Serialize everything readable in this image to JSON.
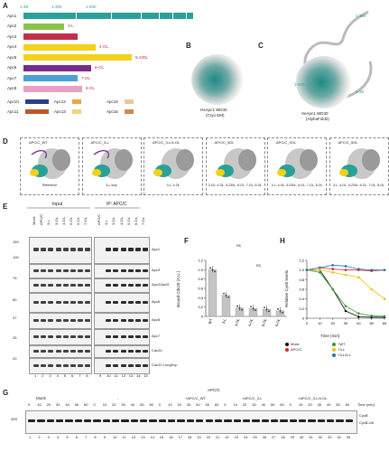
{
  "panels": {
    "A": "A",
    "B": "B",
    "C": "C",
    "D": "D",
    "E": "E",
    "F": "F",
    "G": "G",
    "H": "H"
  },
  "panelA": {
    "callouts": [
      "1-38",
      "1-300",
      "1-500"
    ],
    "rows": [
      {
        "name": "Apc1",
        "color": "#2aa198"
      },
      {
        "name": "Apc2",
        "color": "#8bc34a",
        "suffix": "3-L"
      },
      {
        "name": "Apc3",
        "color": "#c0304a"
      },
      {
        "name": "Apc4",
        "color": "#f2d21b",
        "suffix": "4-OL"
      },
      {
        "name": "Apc5",
        "color": "#f2d21b",
        "suffix": "5-230L"
      },
      {
        "name": "Apc6",
        "color": "#7b2a8c",
        "suffix": "8-OL"
      },
      {
        "name": "Apc7",
        "color": "#4aa0d8",
        "suffix": "7-OL"
      },
      {
        "name": "Apc8",
        "color": "#e8a0c8",
        "suffix": "8-OL"
      }
    ],
    "small_rows": [
      {
        "name": "Apc10",
        "color": "#2b3d8c"
      },
      {
        "name": "Apc11",
        "color": "#c0552a"
      },
      {
        "name": "Apc12",
        "color": "#e8a848"
      },
      {
        "name": "Apc13",
        "color": "#f2d27a"
      },
      {
        "name": "Apc15",
        "color": "#e8c8a0"
      },
      {
        "name": "Apc16",
        "color": "#d08a50"
      }
    ]
  },
  "panelB": {
    "line1": "HsApc1 WD40",
    "line2": "(Cryo EM)"
  },
  "panelC": {
    "line1": "XeApc1 WD40",
    "line2": "(AlphaFold2)",
    "callouts": [
      "1-300",
      "1-500",
      "1-38"
    ]
  },
  "panelD": {
    "complexes": [
      {
        "title": "APC/C_WT",
        "caption": "Reference"
      },
      {
        "title": "APC/C_3-L",
        "caption": "3-L only"
      },
      {
        "title": "APC/C_3-L/4-OL",
        "caption": "3-L, 4-OL"
      },
      {
        "title": "APC/C_3OL",
        "caption": "3-OL, 4-OL, 5-230L, 6-OL, 7-OL, 8-OL"
      },
      {
        "title": "APC/C_4OL",
        "caption": "3-L, 4-OL, 5-230L, 6-OL, 7-OL, 8-OL"
      },
      {
        "title": "APC/C_5OL",
        "caption": "3-L, 4-OL, 5-230L, 6-OL, 7-OL, 8-OL"
      }
    ]
  },
  "panelE": {
    "group_input": "Input",
    "group_ip": "IP: APC/C",
    "lanes": [
      "Mock",
      "APC/C",
      "3-L",
      "3-OL",
      "4-OL",
      "5-OL",
      "6-OL",
      "7-OL"
    ],
    "mw": [
      "150",
      "100",
      "75",
      "50",
      "37",
      "25",
      "20"
    ],
    "bands": [
      "Apc1",
      "Apc3",
      "Apc2/Apc5",
      "Apc6",
      "Apc8",
      "Apc7",
      "Cdc20",
      "Cdc20 LongExp"
    ],
    "lane_numbers": [
      "1",
      "2",
      "3",
      "4",
      "5",
      "6",
      "7",
      "8",
      "9",
      "10",
      "11",
      "12",
      "13",
      "14",
      "15"
    ]
  },
  "panelF": {
    "ylabel": "Bound Cdc20 (A.U.)",
    "sig1": "ns",
    "sig2": "ns"
  },
  "panelH": {
    "ylabel": "Relative CycB levels",
    "xlabel": "Time (min)",
    "legend": [
      {
        "label": "Mock",
        "color": "#111111"
      },
      {
        "label": "APC/C",
        "color": "#d62728"
      },
      {
        "label": "+WT",
        "color": "#2ca02c"
      },
      {
        "label": "+3-L",
        "color": "#f2c000"
      },
      {
        "label": "+3-L/5-L",
        "color": "#1f77b4"
      }
    ]
  },
  "panelG": {
    "group_mock": "Mock",
    "group_apc": "APC/C",
    "subgroups": [
      "-",
      "+APC/C_WT",
      "+APC/C_3-L",
      "+APC/C_3-L/4-OL"
    ],
    "times": [
      "0",
      "10",
      "20",
      "30",
      "40",
      "50",
      "60"
    ],
    "time_unit": "Time (min)",
    "left_label": "35S",
    "right_labels": [
      "CycB",
      "CycB-Ub"
    ]
  },
  "chart_data": [
    {
      "type": "bar",
      "categories": [
        "WT",
        "3-L",
        "3-OL",
        "4-OL",
        "5-OL",
        "6-OL"
      ],
      "values": [
        1.0,
        0.45,
        0.18,
        0.17,
        0.15,
        0.12
      ],
      "ylim": [
        0,
        1.2
      ],
      "ylabel": "Bound Cdc20 (A.U.)",
      "yticks": [
        "0",
        "0.2",
        "0.4",
        "0.6",
        "0.8",
        "1.0",
        "1.2"
      ]
    },
    {
      "type": "line",
      "x": [
        0,
        10,
        20,
        30,
        40,
        50,
        60
      ],
      "xticks": [
        "0",
        "10",
        "20",
        "30",
        "40",
        "50",
        "60"
      ],
      "yticks": [
        "0",
        "0.2",
        "0.4",
        "0.6",
        "0.8",
        "1.0",
        "1.2"
      ],
      "ylim": [
        0,
        1.2
      ],
      "xlabel": "Time (min)",
      "ylabel": "Relative CycB levels",
      "series": [
        {
          "name": "Mock",
          "color": "#111111",
          "values": [
            1.0,
            1.0,
            0.6,
            0.15,
            0.03,
            0.02,
            0.02
          ]
        },
        {
          "name": "APC/C",
          "color": "#d62728",
          "values": [
            1.0,
            1.05,
            1.02,
            1.0,
            1.0,
            0.98,
            1.0
          ]
        },
        {
          "name": "+WT",
          "color": "#2ca02c",
          "values": [
            1.0,
            0.95,
            0.6,
            0.25,
            0.1,
            0.05,
            0.04
          ]
        },
        {
          "name": "+3-L",
          "color": "#f2c000",
          "values": [
            1.0,
            1.0,
            0.95,
            0.9,
            0.85,
            0.6,
            0.4
          ]
        },
        {
          "name": "+3-L/5-L",
          "color": "#1f77b4",
          "values": [
            1.0,
            1.05,
            1.1,
            1.08,
            1.02,
            1.0,
            1.0
          ]
        }
      ]
    }
  ]
}
